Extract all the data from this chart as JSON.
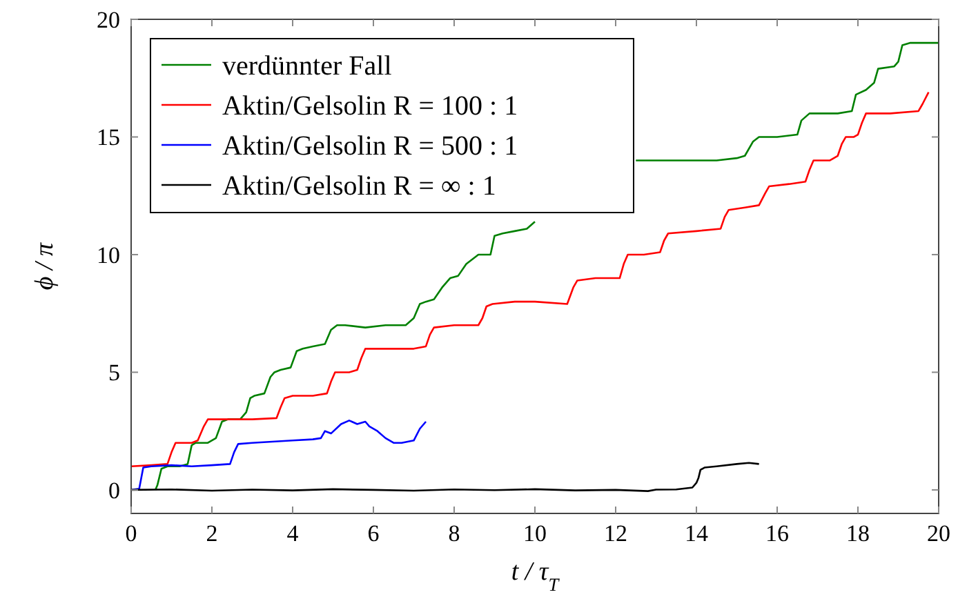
{
  "chart_data": {
    "type": "line",
    "xlabel": "t / τ$_{T}$",
    "ylabel": "ϕ / π",
    "xlim": [
      0,
      20
    ],
    "ylim": [
      -1,
      20
    ],
    "xticks": [
      0,
      2,
      4,
      6,
      8,
      10,
      12,
      14,
      16,
      18,
      20
    ],
    "yticks": [
      0,
      5,
      10,
      15,
      20
    ],
    "grid": false,
    "legend": "top left",
    "line_style": "solid",
    "marker": "none",
    "series": [
      {
        "name": "verdünnter Fall",
        "color": "#008000",
        "x": [
          0.6,
          0.65,
          0.75,
          0.9,
          1.2,
          1.4,
          1.5,
          1.6,
          1.9,
          2.1,
          2.25,
          2.4,
          2.7,
          2.85,
          2.95,
          3.05,
          3.3,
          3.45,
          3.55,
          3.7,
          3.95,
          4.1,
          4.25,
          4.5,
          4.8,
          4.95,
          5.1,
          5.3,
          5.8,
          6.3,
          6.8,
          7.0,
          7.15,
          7.3,
          7.5,
          7.7,
          7.9,
          8.1,
          8.3,
          8.6,
          8.9,
          9.0,
          9.2,
          9.5,
          9.8,
          10.0,
          10.2,
          10.4,
          10.6,
          10.8,
          11.0,
          11.2,
          11.4,
          11.6,
          12.5,
          13.5,
          14.5,
          15.0,
          15.2,
          15.4,
          15.55,
          16.0,
          16.5,
          16.6,
          16.8,
          16.9,
          17.5,
          17.85,
          17.95,
          18.2,
          18.4,
          18.5,
          18.9,
          19.0,
          19.1,
          19.3,
          20.0
        ],
        "values": [
          0,
          0.2,
          0.9,
          1.0,
          1.0,
          1.1,
          1.9,
          2.0,
          2.0,
          2.2,
          2.9,
          3.0,
          3.0,
          3.3,
          3.9,
          4.0,
          4.1,
          4.8,
          5.0,
          5.1,
          5.2,
          5.9,
          6.0,
          6.1,
          6.2,
          6.8,
          7.0,
          7.0,
          6.9,
          7.0,
          7.0,
          7.3,
          7.9,
          8.0,
          8.1,
          8.6,
          9.0,
          9.1,
          9.6,
          10.0,
          10.0,
          10.8,
          10.9,
          11.0,
          11.1,
          11.4,
          null,
          null,
          null,
          null,
          null,
          null,
          null,
          null,
          14.0,
          14.0,
          14.0,
          14.1,
          14.2,
          14.8,
          15.0,
          15.0,
          15.1,
          15.7,
          16.0,
          16.0,
          16.0,
          16.1,
          16.8,
          17.0,
          17.3,
          17.9,
          18.0,
          18.2,
          18.9,
          19.0,
          19.0
        ]
      },
      {
        "name": "Aktin/Gelsolin R = 100 : 1",
        "color": "#ff0000",
        "x": [
          0,
          0.5,
          0.9,
          1.0,
          1.1,
          1.5,
          1.65,
          1.8,
          1.9,
          2.5,
          3.0,
          3.6,
          3.7,
          3.8,
          4.0,
          4.5,
          4.85,
          4.95,
          5.05,
          5.4,
          5.6,
          5.7,
          5.8,
          6.4,
          7.0,
          7.3,
          7.4,
          7.5,
          8.0,
          8.6,
          8.7,
          8.8,
          8.95,
          9.5,
          10.0,
          10.8,
          10.95,
          11.05,
          11.5,
          12.1,
          12.2,
          12.3,
          12.7,
          13.1,
          13.2,
          13.3,
          14.0,
          14.6,
          14.7,
          14.8,
          15.2,
          15.55,
          15.7,
          15.8,
          16.3,
          16.7,
          16.8,
          16.9,
          17.3,
          17.5,
          17.6,
          17.7,
          17.9,
          18.0,
          18.1,
          18.2,
          18.8,
          19.5,
          19.6,
          19.75
        ],
        "values": [
          1.0,
          1.05,
          1.1,
          1.6,
          2.0,
          2.0,
          2.1,
          2.7,
          3.0,
          3.0,
          3.0,
          3.05,
          3.5,
          3.9,
          4.0,
          4.0,
          4.1,
          4.6,
          5.0,
          5.0,
          5.1,
          5.6,
          6.0,
          6.0,
          6.0,
          6.1,
          6.6,
          6.9,
          7.0,
          7.0,
          7.3,
          7.8,
          7.9,
          8.0,
          8.0,
          7.9,
          8.6,
          8.9,
          9.0,
          9.0,
          9.6,
          10.0,
          10.0,
          10.1,
          10.6,
          10.9,
          11.0,
          11.1,
          11.6,
          11.9,
          12.0,
          12.1,
          12.6,
          12.9,
          13.0,
          13.1,
          13.6,
          14.0,
          14.0,
          14.2,
          14.7,
          15.0,
          15.0,
          15.1,
          15.6,
          16.0,
          16.0,
          16.1,
          16.4,
          16.9
        ]
      },
      {
        "name": "Aktin/Gelsolin R = 500 : 1",
        "color": "#0000ff",
        "x": [
          0,
          0.2,
          0.3,
          0.5,
          1.0,
          1.5,
          2.0,
          2.45,
          2.55,
          2.65,
          3.0,
          3.5,
          4.0,
          4.5,
          4.7,
          4.8,
          4.95,
          5.2,
          5.4,
          5.6,
          5.8,
          5.9,
          6.1,
          6.3,
          6.5,
          6.7,
          7.0,
          7.15,
          7.3
        ],
        "values": [
          0,
          0.05,
          0.95,
          1.0,
          1.05,
          1.0,
          1.05,
          1.1,
          1.6,
          1.95,
          2.0,
          2.05,
          2.1,
          2.15,
          2.2,
          2.5,
          2.4,
          2.8,
          2.95,
          2.8,
          2.9,
          2.7,
          2.5,
          2.2,
          2.0,
          2.0,
          2.1,
          2.6,
          2.9
        ]
      },
      {
        "name": "Aktin/Gelsolin R = ∞   : 1",
        "color": "#000000",
        "x": [
          0,
          1,
          2,
          3,
          4,
          5,
          6,
          7,
          8,
          9,
          10,
          11,
          12,
          12.8,
          13,
          13.5,
          13.9,
          14.0,
          14.05,
          14.1,
          14.2,
          14.5,
          15.0,
          15.3,
          15.55
        ],
        "values": [
          0,
          0.02,
          -0.03,
          0.01,
          -0.02,
          0.03,
          0,
          -0.03,
          0.02,
          -0.01,
          0.03,
          -0.02,
          0,
          -0.05,
          0.01,
          0.02,
          0.1,
          0.3,
          0.5,
          0.85,
          0.95,
          1.0,
          1.1,
          1.15,
          1.1
        ]
      }
    ]
  }
}
